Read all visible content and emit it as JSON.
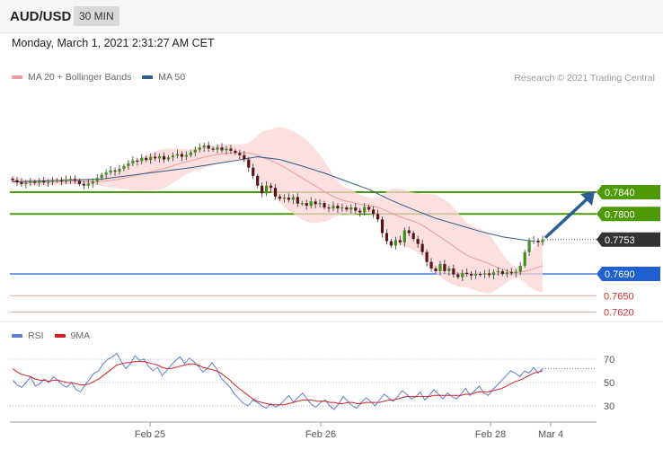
{
  "header": {
    "pair": "AUD/USD",
    "timeframe": "30 MIN"
  },
  "datetime": "Monday, March 1, 2021 2:31:27 AM CET",
  "legend": {
    "ma20": {
      "label": "MA 20 + Bollinger Bands",
      "color": "#f09a9a"
    },
    "ma50": {
      "label": "MA 50",
      "color": "#2f5d8a"
    }
  },
  "copyright": "Research © 2021 Trading Central",
  "rsi_legend": {
    "rsi": {
      "label": "RSI",
      "color": "#5b7fd1"
    },
    "ma9": {
      "label": "9MA",
      "color": "#d32020"
    }
  },
  "colors": {
    "green": "#4e9a06",
    "blue": "#2060d0",
    "red": "#d03030",
    "dark": "#333333",
    "arrow": "#2a5f93"
  },
  "chart_data": [
    {
      "type": "line",
      "title": "AUD/USD 30 MIN",
      "y_range": [
        0.76,
        0.795
      ],
      "x_tick_labels": [
        "Feb 25",
        "Feb 26",
        "Feb 28",
        "Mar 4"
      ],
      "current_price": "0.7753",
      "levels": [
        {
          "label": "0.7840",
          "value": 0.784,
          "kind": "resistance"
        },
        {
          "label": "0.7800",
          "value": 0.78,
          "kind": "resistance"
        },
        {
          "label": "0.7753",
          "value": 0.7753,
          "kind": "current"
        },
        {
          "label": "0.7690",
          "value": 0.769,
          "kind": "pivot"
        },
        {
          "label": "0.7650",
          "value": 0.765,
          "kind": "support"
        },
        {
          "label": "0.7620",
          "value": 0.762,
          "kind": "support"
        }
      ],
      "close_series": [
        0.7862,
        0.7858,
        0.7855,
        0.7857,
        0.7859,
        0.7857,
        0.786,
        0.7858,
        0.7859,
        0.7861,
        0.7862,
        0.786,
        0.7863,
        0.7864,
        0.7861,
        0.7855,
        0.7852,
        0.7856,
        0.786,
        0.7866,
        0.7872,
        0.7876,
        0.788,
        0.7878,
        0.7883,
        0.7888,
        0.7893,
        0.7898,
        0.7897,
        0.7903,
        0.7899,
        0.7905,
        0.7902,
        0.7906,
        0.79,
        0.7904,
        0.7907,
        0.791,
        0.7905,
        0.7908,
        0.7913,
        0.7918,
        0.7922,
        0.7926,
        0.792,
        0.7918,
        0.7922,
        0.7917,
        0.792,
        0.7916,
        0.7912,
        0.7908,
        0.79,
        0.7885,
        0.787,
        0.7852,
        0.7838,
        0.7852,
        0.7848,
        0.7832,
        0.7828,
        0.783,
        0.7826,
        0.7831,
        0.7819,
        0.782,
        0.7815,
        0.7823,
        0.7818,
        0.782,
        0.7812,
        0.781,
        0.7815,
        0.781,
        0.7812,
        0.7808,
        0.7812,
        0.7806,
        0.7803,
        0.7813,
        0.7808,
        0.78,
        0.779,
        0.7765,
        0.775,
        0.7742,
        0.7752,
        0.7748,
        0.777,
        0.7765,
        0.7754,
        0.7745,
        0.773,
        0.7712,
        0.77,
        0.7695,
        0.7708,
        0.7695,
        0.77,
        0.7689,
        0.7684,
        0.7692,
        0.769,
        0.7687,
        0.769,
        0.7689,
        0.7691,
        0.7688,
        0.7693,
        0.7695,
        0.769,
        0.7693,
        0.7692,
        0.7694,
        0.7705,
        0.773,
        0.775,
        0.7751,
        0.7748,
        0.7753
      ],
      "ma50_series": [
        [
          0,
          0.7859
        ],
        [
          20,
          0.7864
        ],
        [
          40,
          0.7885
        ],
        [
          50,
          0.7898
        ],
        [
          55,
          0.7905
        ],
        [
          60,
          0.79
        ],
        [
          65,
          0.7888
        ],
        [
          70,
          0.7875
        ],
        [
          75,
          0.786
        ],
        [
          80,
          0.7845
        ],
        [
          85,
          0.7825
        ],
        [
          90,
          0.7808
        ],
        [
          95,
          0.7792
        ],
        [
          100,
          0.778
        ],
        [
          105,
          0.7768
        ],
        [
          110,
          0.7758
        ],
        [
          115,
          0.7752
        ],
        [
          117,
          0.775
        ]
      ],
      "forecast_arrow": {
        "from": 0.7753,
        "to": 0.784
      }
    },
    {
      "type": "line",
      "title": "RSI",
      "y_range": [
        20,
        82
      ],
      "y_ticks": [
        30,
        50,
        70
      ],
      "series": [
        {
          "name": "RSI",
          "values": [
            52,
            48,
            46,
            50,
            55,
            47,
            49,
            53,
            50,
            55,
            52,
            48,
            46,
            50,
            44,
            42,
            48,
            53,
            58,
            60,
            66,
            70,
            72,
            75,
            68,
            62,
            66,
            73,
            69,
            70,
            64,
            60,
            63,
            56,
            60,
            65,
            69,
            72,
            66,
            71,
            68,
            64,
            59,
            62,
            67,
            62,
            54,
            50,
            46,
            40,
            36,
            32,
            30,
            35,
            33,
            30,
            28,
            32,
            29,
            31,
            35,
            39,
            33,
            37,
            41,
            36,
            31,
            29,
            33,
            35,
            30,
            27,
            32,
            38,
            34,
            30,
            28,
            33,
            37,
            34,
            30,
            35,
            40,
            37,
            34,
            38,
            43,
            40,
            36,
            38,
            42,
            35,
            39,
            44,
            40,
            36,
            41,
            38,
            36,
            40,
            45,
            39,
            43,
            47,
            41,
            39,
            44,
            48,
            52,
            56,
            60,
            58,
            55,
            60,
            58,
            63,
            58,
            62
          ]
        },
        {
          "name": "9MA",
          "values": [
            62,
            59,
            57,
            56,
            55,
            53,
            52,
            52,
            51,
            52,
            52,
            51,
            50,
            50,
            49,
            48,
            48,
            49,
            51,
            53,
            56,
            59,
            62,
            65,
            66,
            67,
            67,
            68,
            68,
            68,
            67,
            66,
            65,
            63,
            62,
            62,
            63,
            64,
            65,
            66,
            66,
            65,
            63,
            62,
            61,
            60,
            58,
            55,
            52,
            48,
            45,
            42,
            39,
            36,
            34,
            33,
            32,
            31,
            31,
            31,
            31,
            32,
            33,
            34,
            35,
            35,
            35,
            34,
            34,
            34,
            33,
            33,
            32,
            32,
            33,
            33,
            32,
            32,
            33,
            33,
            33,
            33,
            34,
            35,
            35,
            36,
            37,
            38,
            38,
            38,
            38,
            38,
            38,
            39,
            39,
            39,
            39,
            39,
            39,
            39,
            40,
            40,
            41,
            42,
            42,
            42,
            43,
            44,
            45,
            47,
            49,
            51,
            52,
            54,
            56,
            58,
            59,
            60
          ]
        }
      ]
    }
  ]
}
